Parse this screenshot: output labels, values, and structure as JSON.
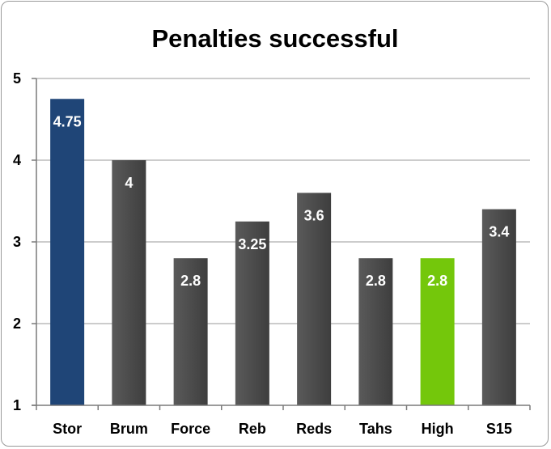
{
  "chart_data": {
    "type": "bar",
    "title": "Penalties successful",
    "xlabel": "",
    "ylabel": "",
    "categories": [
      "Stor",
      "Brum",
      "Force",
      "Reb",
      "Reds",
      "Tahs",
      "High",
      "S15"
    ],
    "values": [
      4.75,
      4,
      2.8,
      3.25,
      3.6,
      2.8,
      2.8,
      3.4
    ],
    "data_labels": [
      "4.75",
      "4",
      "2.8",
      "3.25",
      "3.6",
      "2.8",
      "2.8",
      "3.4"
    ],
    "ylim": [
      1,
      5
    ],
    "yticks": [
      "1",
      "2",
      "3",
      "4",
      "5"
    ],
    "grid": true,
    "colors": {
      "default": "#4d4d4d",
      "Stor": "#1f4577",
      "High": "#74c70b"
    }
  }
}
